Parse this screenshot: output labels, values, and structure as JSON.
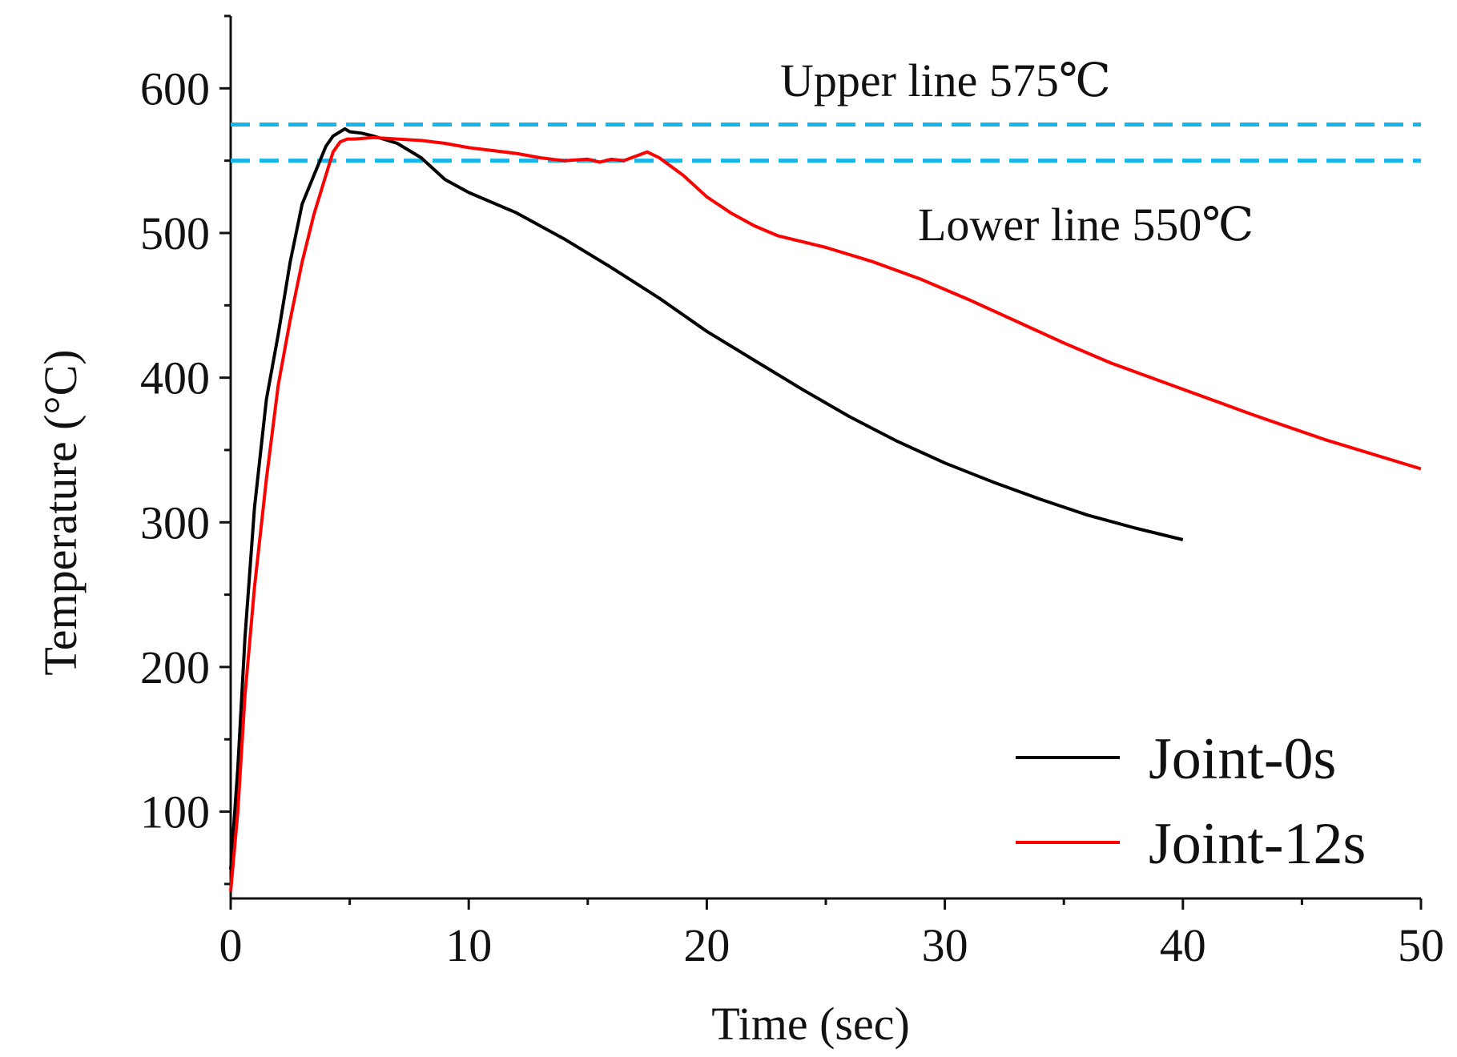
{
  "chart_data": {
    "type": "line",
    "title": "",
    "xlabel": "Time (sec)",
    "ylabel": "Temperature (°C)",
    "xlim": [
      0,
      50
    ],
    "ylim": [
      40,
      650
    ],
    "x_ticks": [
      0,
      10,
      20,
      30,
      40,
      50
    ],
    "y_ticks": [
      100,
      200,
      300,
      400,
      500,
      600
    ],
    "grid": false,
    "legend_position": "bottom-right",
    "series": [
      {
        "name": "Joint-0s",
        "color": "#000000",
        "x": [
          0,
          0.3,
          0.6,
          1.0,
          1.5,
          2.0,
          2.5,
          3.0,
          3.5,
          4.0,
          4.3,
          4.6,
          4.8,
          5.0,
          5.5,
          6.0,
          7.0,
          8.0,
          9.0,
          10.0,
          12.0,
          14.0,
          16.0,
          18.0,
          20.0,
          22.0,
          24.0,
          26.0,
          28.0,
          30.0,
          32.0,
          34.0,
          36.0,
          38.0,
          40.0
        ],
        "y": [
          60,
          130,
          220,
          310,
          385,
          430,
          480,
          520,
          540,
          560,
          567,
          570,
          572,
          570,
          569,
          567,
          562,
          552,
          537,
          528,
          514,
          496,
          476,
          455,
          432,
          412,
          392,
          373,
          356,
          341,
          328,
          316,
          305,
          296,
          288
        ]
      },
      {
        "name": "Joint-12s",
        "color": "#ff0000",
        "x": [
          0,
          0.3,
          0.6,
          1.0,
          1.5,
          2.0,
          2.5,
          3.0,
          3.5,
          4.0,
          4.3,
          4.6,
          4.9,
          5.2,
          6.0,
          7.0,
          8.0,
          9.0,
          10.0,
          11.0,
          12.0,
          13.0,
          14.0,
          15.0,
          15.5,
          16.0,
          16.5,
          17.0,
          17.5,
          18.0,
          19.0,
          20.0,
          21.0,
          22.0,
          23.0,
          25.0,
          27.0,
          29.0,
          31.0,
          33.0,
          35.0,
          37.0,
          40.0,
          43.0,
          46.0,
          50.0
        ],
        "y": [
          45,
          100,
          180,
          255,
          330,
          395,
          440,
          480,
          513,
          540,
          556,
          563,
          565,
          565,
          566,
          565,
          564,
          562,
          559,
          557,
          555,
          552,
          550,
          551,
          549,
          551,
          550,
          553,
          556,
          552,
          540,
          525,
          514,
          505,
          498,
          490,
          480,
          468,
          454,
          439,
          424,
          410,
          392,
          374,
          357,
          337
        ]
      }
    ],
    "reference_lines": [
      {
        "label": "Upper line 575℃",
        "y": 575,
        "color": "#16b6ec",
        "style": "dashed"
      },
      {
        "label": "Lower line 550℃",
        "y": 550,
        "color": "#16b6ec",
        "style": "dashed"
      }
    ]
  }
}
